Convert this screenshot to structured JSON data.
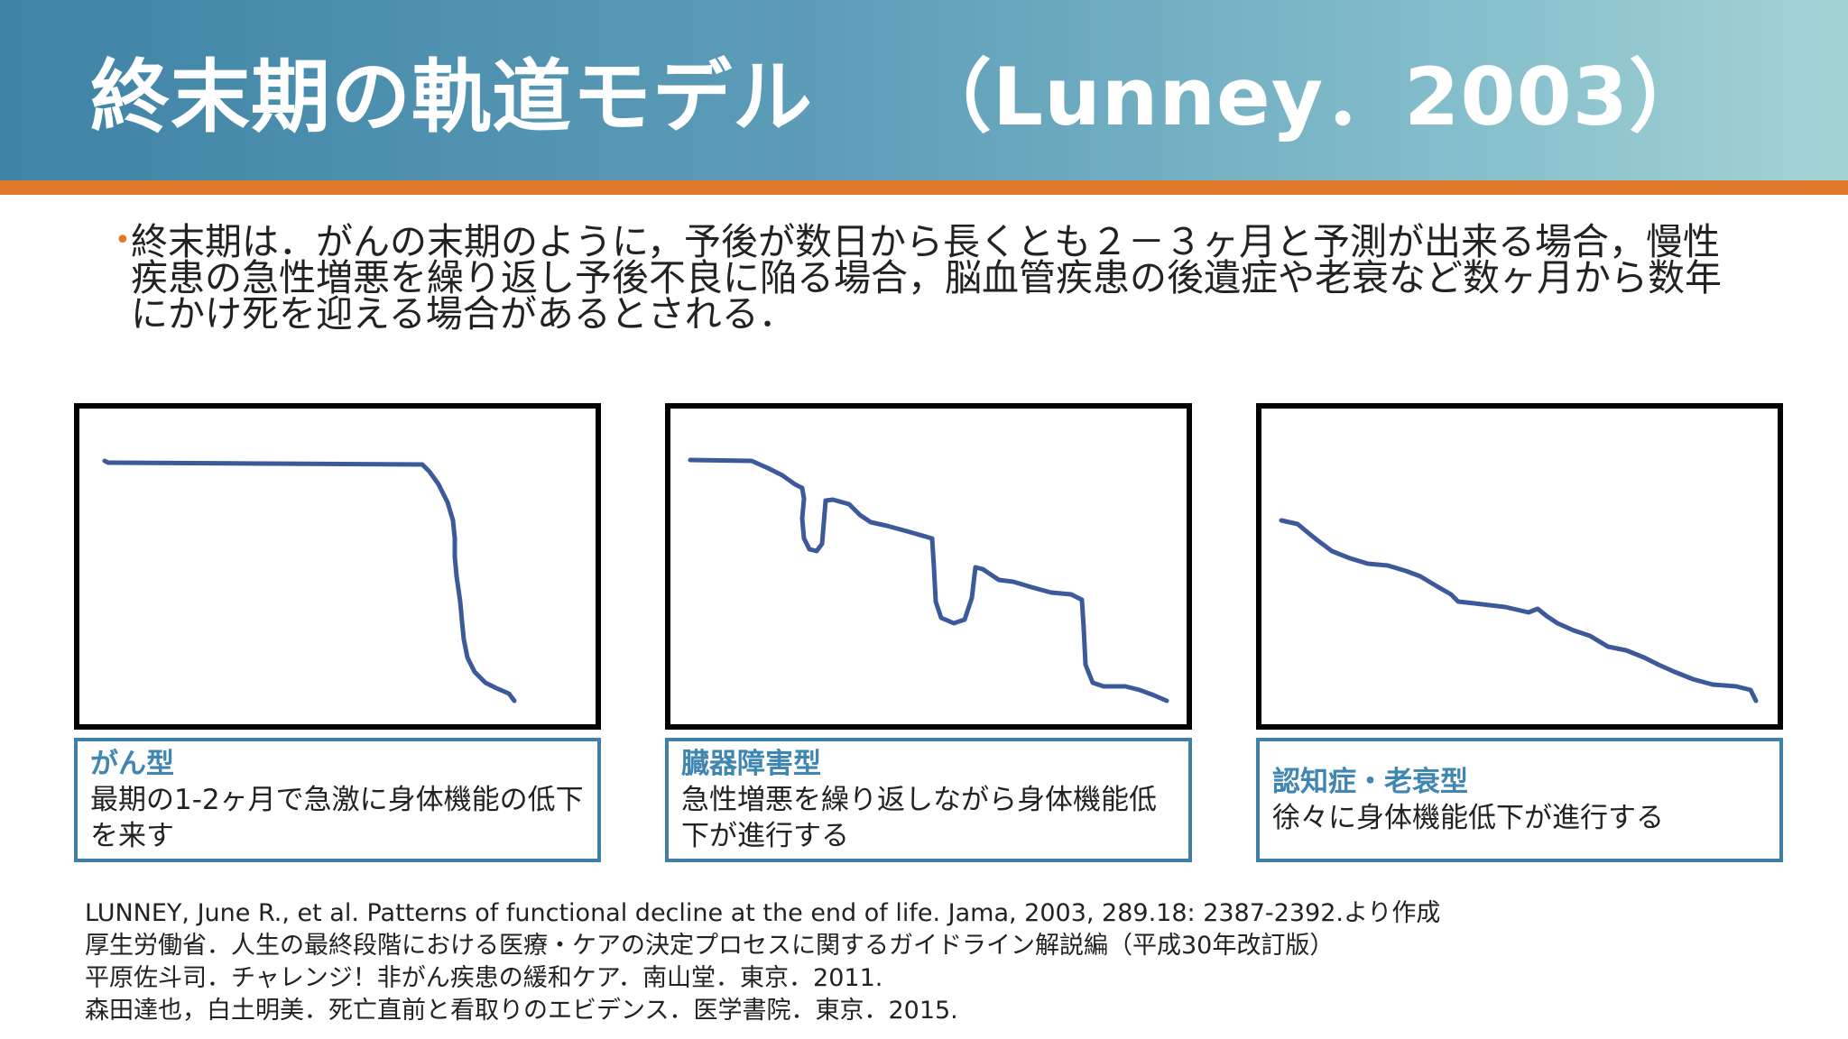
{
  "header": {
    "title": "終末期の軌道モデル",
    "citation": "（Lunney．2003）"
  },
  "bullet": {
    "text": "終末期は．がんの末期のように，予後が数日から長くとも２－３ヶ月と予測が出来る場合，慢性疾患の急性増悪を繰り返し予後不良に陥る場合，脳血管疾患の後遺症や老衰など数ヶ月から数年にかけ死を迎える場合があるとされる．"
  },
  "panels": [
    {
      "title": "がん型",
      "description": "最期の1-2ヶ月で急激に身体機能の低下を来す"
    },
    {
      "title": "臓器障害型",
      "description": "急性増悪を繰り返しながら身体機能低下が進行する"
    },
    {
      "title": "認知症・老衰型",
      "description": "徐々に身体機能低下が進行する"
    }
  ],
  "colors": {
    "curve": "#3c5a9a",
    "accent": "#e07a2a",
    "caption_border": "#3f7fa8"
  },
  "references": [
    "LUNNEY, June R., et al. Patterns of functional decline at the end of life. Jama, 2003, 289.18: 2387-2392.より作成",
    "厚生労働省．人生の最終段階における医療・ケアの決定プロセスに関するガイドライン解説編（平成30年改訂版）",
    "平原佐斗司．チャレンジ！非がん疾患の緩和ケア．南山堂．東京．2011.",
    "森田達也，白土明美．死亡直前と看取りのエビデンス．医学書院．東京．2015."
  ]
}
